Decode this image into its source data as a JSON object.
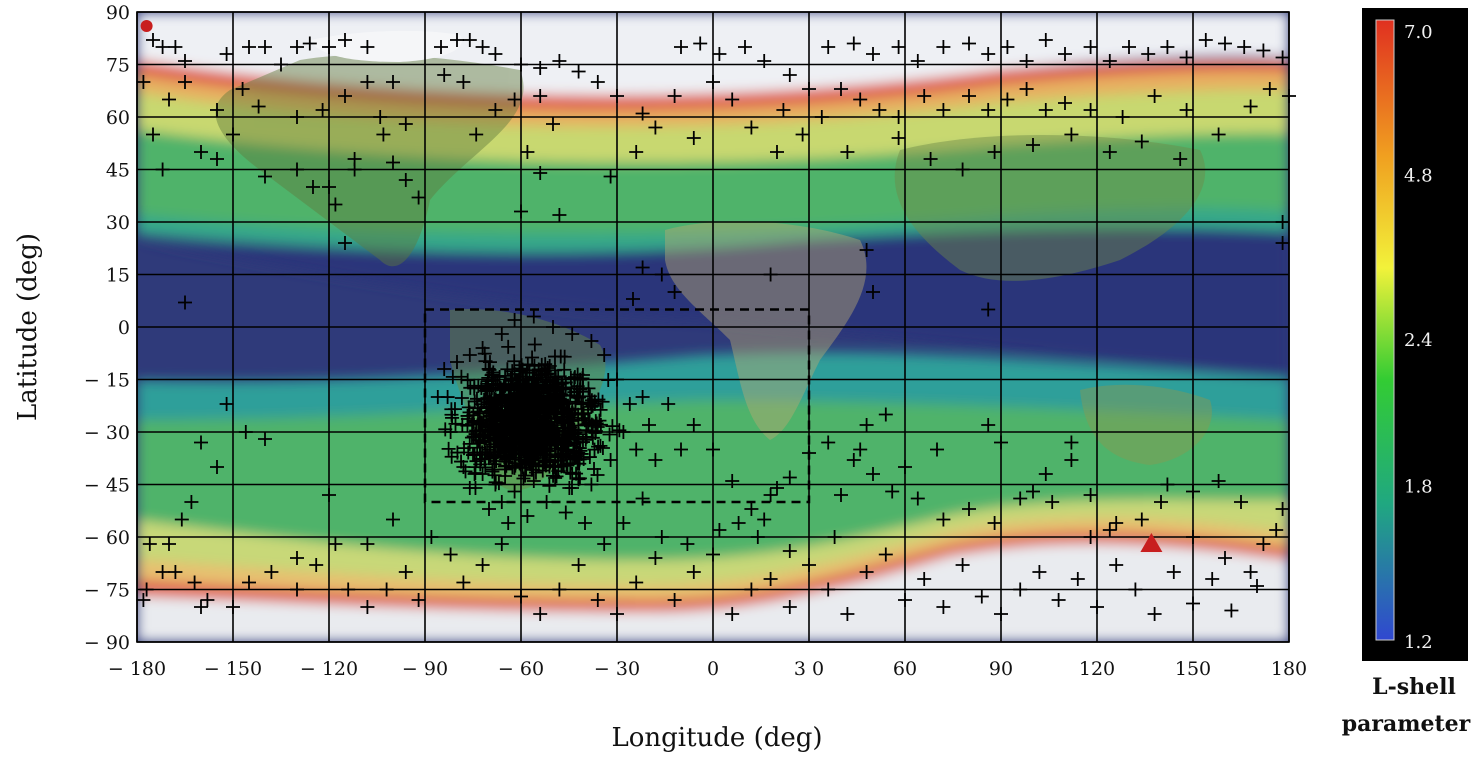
{
  "chart_data": {
    "type": "scatter",
    "title": "",
    "xlabel": "Longitude (deg)",
    "ylabel": "Latitude (deg)",
    "xlim": [
      -180,
      180
    ],
    "ylim": [
      -90,
      90
    ],
    "x_ticks": [
      -180,
      -150,
      -120,
      -90,
      -60,
      -30,
      0,
      30,
      60,
      90,
      120,
      150,
      180
    ],
    "y_ticks": [
      90,
      75,
      60,
      45,
      30,
      15,
      0,
      -15,
      -30,
      -45,
      -60,
      -75,
      -90
    ],
    "x_tick_labels": [
      "− 180",
      "− 150",
      "− 120",
      "− 90",
      "− 60",
      "− 30",
      "0",
      "3 0",
      "60",
      "90",
      "120",
      "150",
      "180"
    ],
    "y_tick_labels": [
      "90",
      "75",
      "60",
      "45",
      "30",
      "15",
      "0",
      "− 15",
      "− 30",
      "− 45",
      "− 60",
      "− 75",
      "− 90"
    ],
    "grid": true,
    "marker": "+",
    "background": "world map shaded by L-shell parameter",
    "colorbar": {
      "title_line1": "L-shell",
      "title_line2": "parameter",
      "labels": [
        "7.0",
        "4.8",
        "2.4",
        "1.8",
        "1.2"
      ],
      "colors": [
        "#e03020",
        "#f0a020",
        "#f2f23a",
        "#33cc33",
        "#20a880",
        "#3048d0"
      ]
    },
    "region_box": {
      "lon_min": -90,
      "lon_max": 30,
      "lat_min": -50,
      "lat_max": 5,
      "style": "dashed"
    },
    "special_markers": [
      {
        "shape": "circle",
        "color": "#c81e1e",
        "lon": -177,
        "lat": 86
      },
      {
        "shape": "triangle",
        "color": "#c81e1e",
        "lon": 137,
        "lat": -62
      }
    ],
    "scattered_points": [
      [
        -178,
        70
      ],
      [
        -175,
        82
      ],
      [
        -172,
        80
      ],
      [
        -168,
        80
      ],
      [
        -165,
        76
      ],
      [
        -170,
        65
      ],
      [
        -175,
        55
      ],
      [
        -172,
        45
      ],
      [
        -160,
        50
      ],
      [
        -155,
        48
      ],
      [
        -152,
        78
      ],
      [
        -145,
        80
      ],
      [
        -140,
        80
      ],
      [
        -135,
        75
      ],
      [
        -130,
        80
      ],
      [
        -126,
        81
      ],
      [
        -120,
        80
      ],
      [
        -115,
        82
      ],
      [
        -108,
        80
      ],
      [
        -100,
        70
      ],
      [
        -96,
        58
      ],
      [
        -103,
        55
      ],
      [
        -112,
        48
      ],
      [
        -120,
        40
      ],
      [
        -125,
        40
      ],
      [
        -130,
        45
      ],
      [
        -140,
        43
      ],
      [
        -150,
        55
      ],
      [
        -155,
        62
      ],
      [
        -165,
        70
      ],
      [
        -147,
        68
      ],
      [
        -142,
        63
      ],
      [
        -130,
        60
      ],
      [
        -122,
        62
      ],
      [
        -115,
        66
      ],
      [
        -108,
        70
      ],
      [
        -104,
        60
      ],
      [
        -100,
        47
      ],
      [
        -96,
        42
      ],
      [
        -92,
        37
      ],
      [
        -115,
        24
      ],
      [
        -112,
        45
      ],
      [
        -118,
        35
      ],
      [
        -85,
        80
      ],
      [
        -80,
        82
      ],
      [
        -76,
        82
      ],
      [
        -72,
        80
      ],
      [
        -68,
        78
      ],
      [
        -60,
        75
      ],
      [
        -54,
        74
      ],
      [
        -48,
        76
      ],
      [
        -42,
        73
      ],
      [
        -36,
        70
      ],
      [
        -30,
        66
      ],
      [
        -22,
        61
      ],
      [
        -18,
        57
      ],
      [
        -24,
        50
      ],
      [
        -32,
        43
      ],
      [
        -50,
        58
      ],
      [
        -54,
        66
      ],
      [
        -62,
        65
      ],
      [
        -68,
        62
      ],
      [
        -74,
        55
      ],
      [
        -78,
        70
      ],
      [
        -84,
        72
      ],
      [
        -58,
        50
      ],
      [
        -54,
        44
      ],
      [
        -60,
        33
      ],
      [
        -48,
        32
      ],
      [
        -10,
        80
      ],
      [
        -4,
        81
      ],
      [
        2,
        78
      ],
      [
        10,
        80
      ],
      [
        16,
        76
      ],
      [
        24,
        72
      ],
      [
        30,
        68
      ],
      [
        22,
        62
      ],
      [
        12,
        57
      ],
      [
        -6,
        54
      ],
      [
        -12,
        66
      ],
      [
        0,
        70
      ],
      [
        6,
        65
      ],
      [
        36,
        80
      ],
      [
        44,
        81
      ],
      [
        50,
        78
      ],
      [
        58,
        80
      ],
      [
        64,
        76
      ],
      [
        72,
        80
      ],
      [
        80,
        81
      ],
      [
        86,
        78
      ],
      [
        92,
        80
      ],
      [
        98,
        76
      ],
      [
        104,
        82
      ],
      [
        110,
        78
      ],
      [
        118,
        80
      ],
      [
        124,
        76
      ],
      [
        130,
        80
      ],
      [
        136,
        78
      ],
      [
        142,
        80
      ],
      [
        148,
        77
      ],
      [
        154,
        82
      ],
      [
        160,
        81
      ],
      [
        166,
        80
      ],
      [
        172,
        79
      ],
      [
        178,
        77
      ],
      [
        174,
        68
      ],
      [
        168,
        63
      ],
      [
        158,
        55
      ],
      [
        148,
        62
      ],
      [
        138,
        66
      ],
      [
        128,
        60
      ],
      [
        118,
        62
      ],
      [
        110,
        64
      ],
      [
        104,
        62
      ],
      [
        98,
        68
      ],
      [
        92,
        65
      ],
      [
        86,
        62
      ],
      [
        80,
        66
      ],
      [
        72,
        62
      ],
      [
        66,
        66
      ],
      [
        58,
        60
      ],
      [
        52,
        62
      ],
      [
        46,
        65
      ],
      [
        40,
        68
      ],
      [
        34,
        60
      ],
      [
        28,
        55
      ],
      [
        20,
        50
      ],
      [
        42,
        50
      ],
      [
        58,
        54
      ],
      [
        68,
        48
      ],
      [
        78,
        45
      ],
      [
        88,
        50
      ],
      [
        100,
        52
      ],
      [
        112,
        55
      ],
      [
        124,
        50
      ],
      [
        134,
        53
      ],
      [
        146,
        48
      ],
      [
        178,
        30
      ],
      [
        178,
        24
      ],
      [
        180,
        66
      ],
      [
        48,
        22
      ],
      [
        18,
        15
      ],
      [
        50,
        10
      ],
      [
        86,
        5
      ],
      [
        -12,
        10
      ],
      [
        -16,
        15
      ],
      [
        -22,
        17
      ],
      [
        -25,
        8
      ],
      [
        -165,
        7
      ],
      [
        -152,
        -22
      ],
      [
        -160,
        -33
      ],
      [
        -155,
        -40
      ],
      [
        -163,
        -50
      ],
      [
        -166,
        -55
      ],
      [
        -170,
        -62
      ],
      [
        -177,
        -75
      ],
      [
        -172,
        -70
      ],
      [
        -168,
        -70
      ],
      [
        -162,
        -73
      ],
      [
        -158,
        -78
      ],
      [
        -150,
        -80
      ],
      [
        -145,
        -73
      ],
      [
        -138,
        -70
      ],
      [
        -130,
        -75
      ],
      [
        -124,
        -68
      ],
      [
        -118,
        -62
      ],
      [
        -114,
        -75
      ],
      [
        -108,
        -80
      ],
      [
        -102,
        -75
      ],
      [
        -96,
        -70
      ],
      [
        -92,
        -78
      ],
      [
        -88,
        -60
      ],
      [
        -82,
        -65
      ],
      [
        -78,
        -73
      ],
      [
        -72,
        -68
      ],
      [
        -66,
        -62
      ],
      [
        -60,
        -77
      ],
      [
        -54,
        -82
      ],
      [
        -48,
        -75
      ],
      [
        -42,
        -68
      ],
      [
        -36,
        -78
      ],
      [
        -30,
        -82
      ],
      [
        -24,
        -73
      ],
      [
        -18,
        -66
      ],
      [
        -12,
        -78
      ],
      [
        -6,
        -70
      ],
      [
        0,
        -65
      ],
      [
        6,
        -82
      ],
      [
        12,
        -75
      ],
      [
        18,
        -72
      ],
      [
        24,
        -80
      ],
      [
        30,
        -68
      ],
      [
        36,
        -75
      ],
      [
        42,
        -82
      ],
      [
        48,
        -70
      ],
      [
        54,
        -65
      ],
      [
        60,
        -78
      ],
      [
        66,
        -72
      ],
      [
        72,
        -80
      ],
      [
        78,
        -68
      ],
      [
        84,
        -77
      ],
      [
        90,
        -82
      ],
      [
        96,
        -75
      ],
      [
        102,
        -70
      ],
      [
        108,
        -78
      ],
      [
        114,
        -72
      ],
      [
        120,
        -80
      ],
      [
        126,
        -68
      ],
      [
        132,
        -75
      ],
      [
        138,
        -82
      ],
      [
        144,
        -70
      ],
      [
        150,
        -79
      ],
      [
        156,
        -72
      ],
      [
        162,
        -81
      ],
      [
        168,
        -70
      ],
      [
        172,
        -62
      ],
      [
        176,
        -58
      ],
      [
        165,
        -50
      ],
      [
        158,
        -44
      ],
      [
        150,
        -47
      ],
      [
        142,
        -45
      ],
      [
        134,
        -55
      ],
      [
        126,
        -56
      ],
      [
        118,
        -48
      ],
      [
        112,
        -38
      ],
      [
        104,
        -42
      ],
      [
        96,
        -49
      ],
      [
        88,
        -56
      ],
      [
        80,
        -52
      ],
      [
        72,
        -55
      ],
      [
        64,
        -49
      ],
      [
        56,
        -47
      ],
      [
        50,
        -42
      ],
      [
        44,
        -38
      ],
      [
        36,
        -33
      ],
      [
        30,
        -36
      ],
      [
        24,
        -43
      ],
      [
        18,
        -48
      ],
      [
        12,
        -52
      ],
      [
        6,
        -44
      ],
      [
        0,
        -35
      ],
      [
        -6,
        -28
      ],
      [
        -10,
        -35
      ],
      [
        -14,
        -22
      ],
      [
        -18,
        -38
      ],
      [
        -70,
        -52
      ],
      [
        -64,
        -56
      ],
      [
        -58,
        -54
      ],
      [
        -52,
        -50
      ],
      [
        -46,
        -53
      ],
      [
        -40,
        -56
      ],
      [
        -34,
        -62
      ],
      [
        -28,
        -56
      ],
      [
        -22,
        -49
      ],
      [
        -16,
        -60
      ],
      [
        -8,
        -62
      ],
      [
        2,
        -58
      ],
      [
        8,
        -56
      ],
      [
        14,
        -60
      ],
      [
        20,
        -46
      ],
      [
        -120,
        -48
      ],
      [
        -100,
        -55
      ],
      [
        -108,
        -62
      ],
      [
        -130,
        -66
      ],
      [
        -140,
        -32
      ],
      [
        -146,
        -30
      ],
      [
        -176,
        -62
      ],
      [
        -178,
        -78
      ],
      [
        -160,
        -80
      ],
      [
        60,
        -40
      ],
      [
        70,
        -35
      ],
      [
        86,
        -28
      ],
      [
        90,
        -33
      ],
      [
        100,
        -47
      ],
      [
        112,
        -33
      ],
      [
        118,
        -60
      ],
      [
        124,
        -58
      ],
      [
        140,
        -50
      ],
      [
        150,
        -60
      ],
      [
        160,
        -66
      ],
      [
        170,
        -74
      ],
      [
        178,
        -52
      ],
      [
        106,
        -50
      ],
      [
        54,
        -25
      ],
      [
        48,
        -28
      ],
      [
        46,
        -35
      ],
      [
        40,
        -48
      ],
      [
        38,
        -60
      ],
      [
        24,
        -64
      ],
      [
        16,
        -55
      ],
      [
        -84,
        -12
      ],
      [
        -80,
        -10
      ],
      [
        -86,
        -20
      ],
      [
        -82,
        -30
      ],
      [
        -78,
        -40
      ],
      [
        -76,
        -46
      ],
      [
        -72,
        -42
      ],
      [
        -68,
        -45
      ],
      [
        -62,
        -47
      ],
      [
        -56,
        -44
      ],
      [
        -50,
        -40
      ],
      [
        -44,
        -42
      ],
      [
        -38,
        -45
      ],
      [
        -32,
        -38
      ],
      [
        -28,
        -30
      ],
      [
        -26,
        -22
      ],
      [
        -30,
        -15
      ],
      [
        -34,
        -8
      ],
      [
        -38,
        -4
      ],
      [
        -44,
        -2
      ],
      [
        -50,
        0
      ],
      [
        -56,
        3
      ],
      [
        -62,
        2
      ],
      [
        -66,
        -2
      ],
      [
        -72,
        -6
      ],
      [
        -76,
        -8
      ],
      [
        -20,
        -28
      ],
      [
        -24,
        -35
      ],
      [
        -22,
        -20
      ],
      [
        -66,
        -50
      ]
    ],
    "cluster": {
      "center_lon": -57,
      "center_lat": -27,
      "spread_lon": 14,
      "spread_lat": 10,
      "count": 1100
    }
  }
}
